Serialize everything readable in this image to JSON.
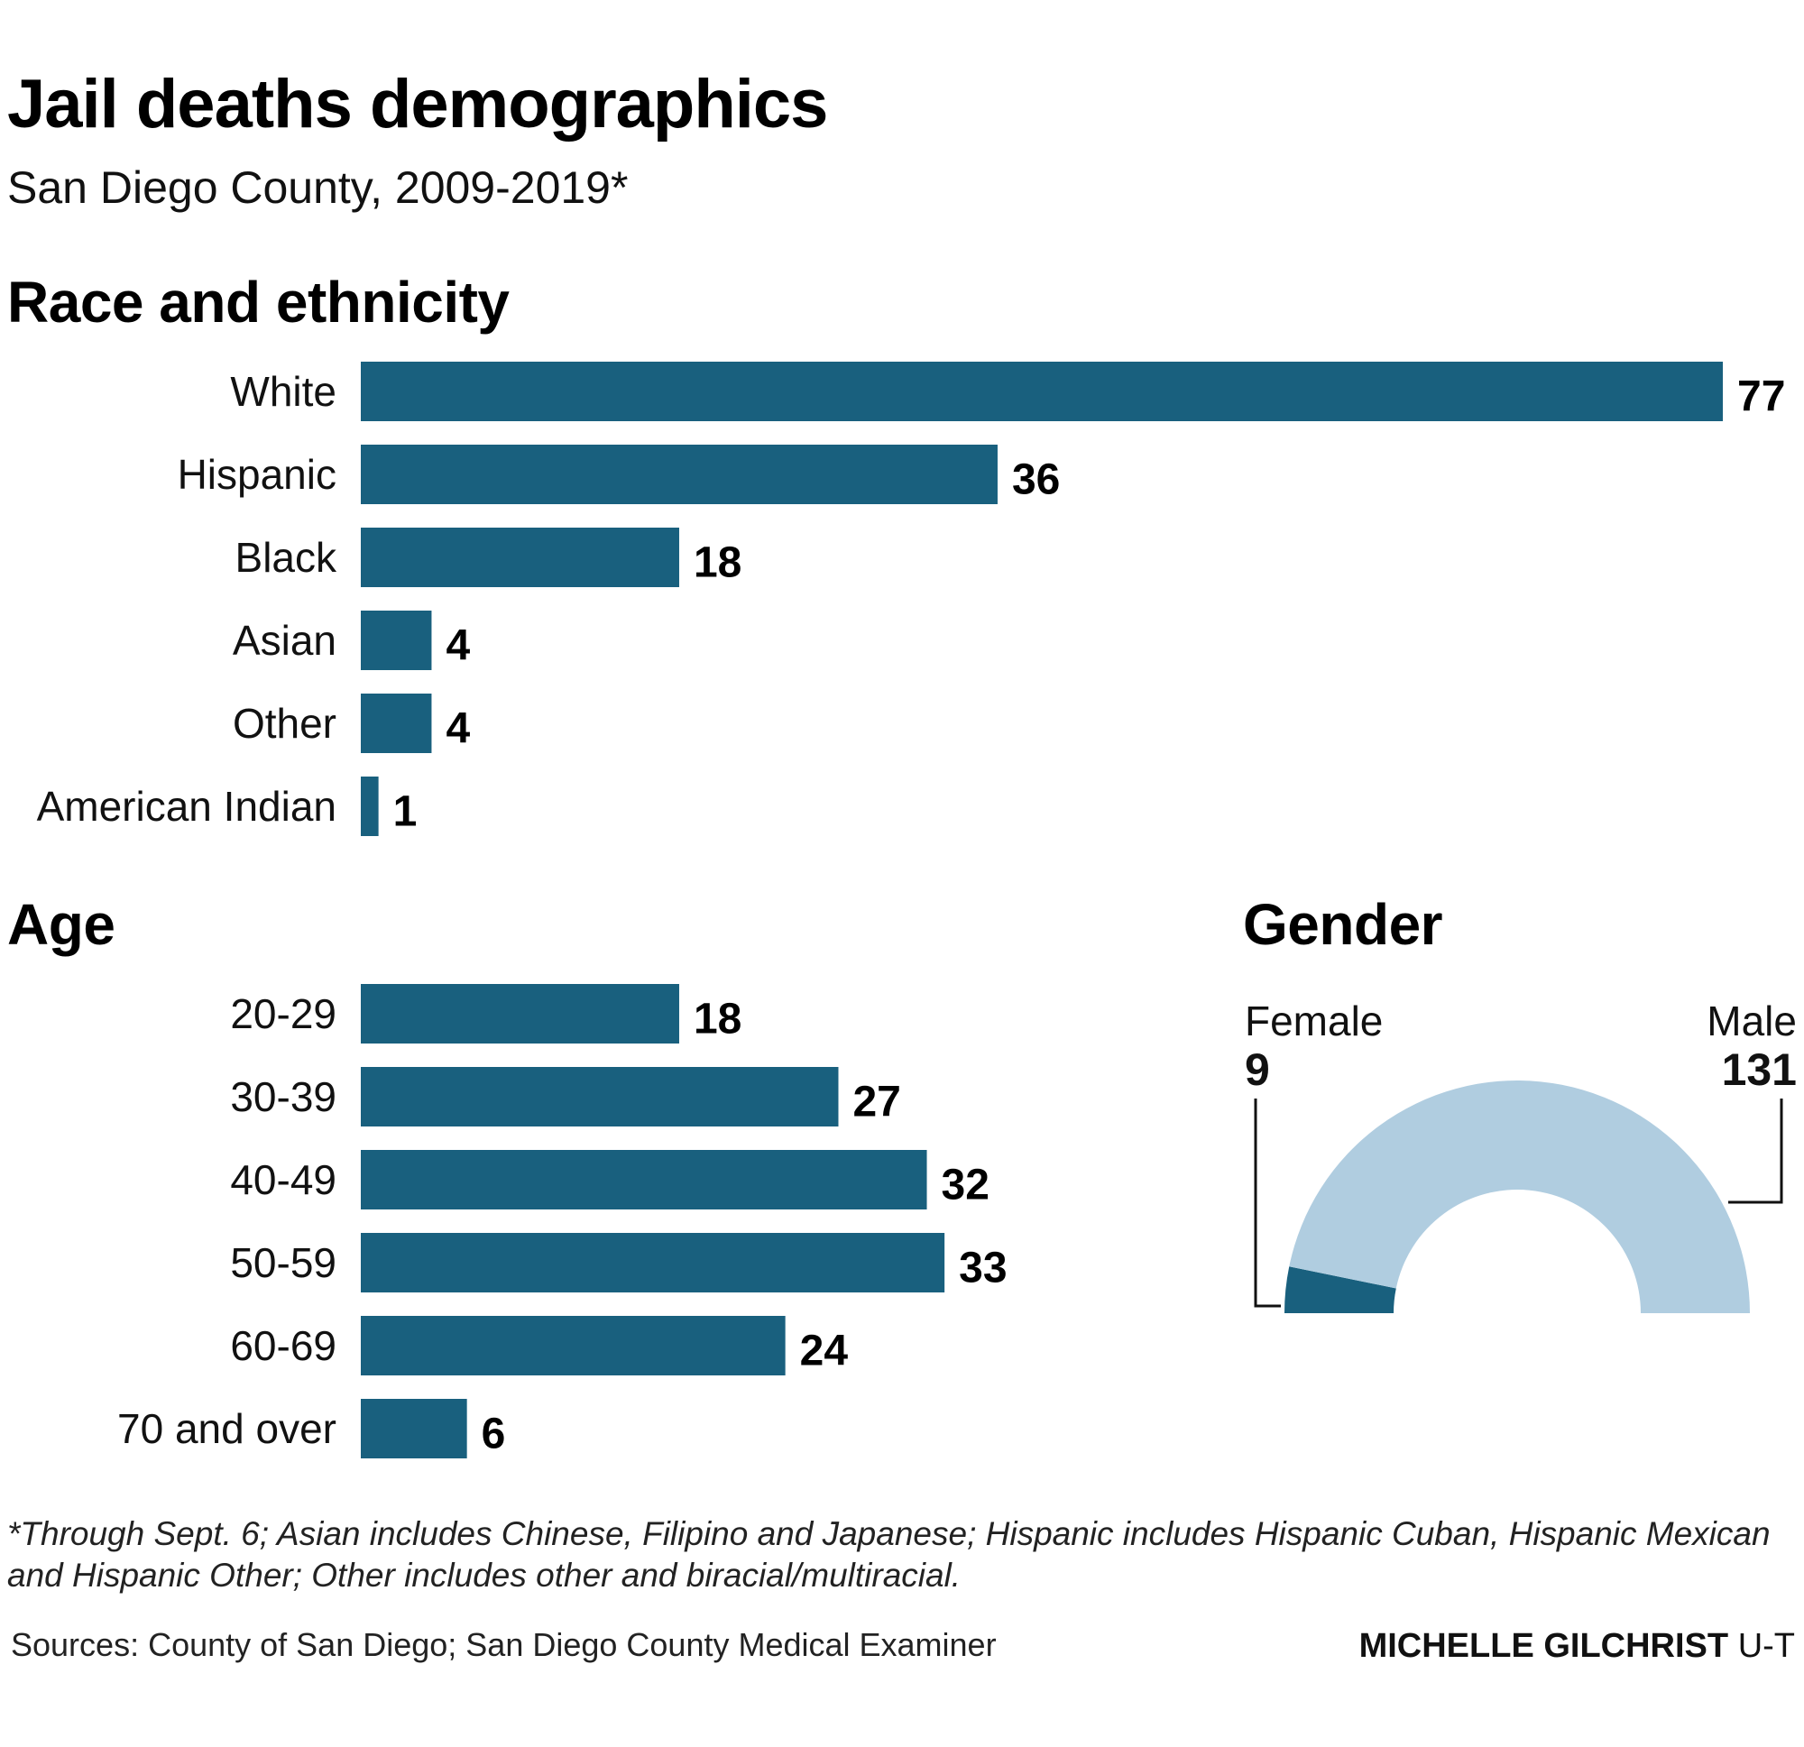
{
  "header": {
    "title": "Jail deaths demographics",
    "subtitle": "San Diego County, 2009-2019*"
  },
  "colors": {
    "bar": "#19607e",
    "female": "#19607e",
    "male": "#b0cde0",
    "text": "#111111"
  },
  "chart_data": [
    {
      "type": "bar",
      "orientation": "horizontal",
      "title": "Race and ethnicity",
      "categories": [
        "White",
        "Hispanic",
        "Black",
        "Asian",
        "Other",
        "American Indian"
      ],
      "values": [
        77,
        36,
        18,
        4,
        4,
        1
      ],
      "labels": [
        "77",
        "36",
        "18",
        "4",
        "4",
        "1"
      ],
      "xlim": [
        0,
        77
      ]
    },
    {
      "type": "bar",
      "orientation": "horizontal",
      "title": "Age",
      "categories": [
        "20-29",
        "30-39",
        "40-49",
        "50-59",
        "60-69",
        "70 and over"
      ],
      "values": [
        18,
        27,
        32,
        33,
        24,
        6
      ],
      "labels": [
        "18",
        "27",
        "32",
        "33",
        "24",
        "6"
      ],
      "xlim": [
        0,
        77
      ]
    },
    {
      "type": "pie",
      "variant": "half-donut",
      "title": "Gender",
      "categories": [
        "Female",
        "Male"
      ],
      "values": [
        9,
        131
      ],
      "labels": [
        "9",
        "131"
      ]
    }
  ],
  "footer": {
    "footnote": "*Through Sept. 6; Asian includes Chinese, Filipino and Japanese; Hispanic includes Hispanic Cuban, Hispanic Mexican and Hispanic Other; Other includes other and biracial/multiracial.",
    "sources": "Sources: County of San Diego; San Diego County Medical Examiner",
    "credit_name": "MICHELLE GILCHRIST",
    "credit_org": "U-T"
  }
}
